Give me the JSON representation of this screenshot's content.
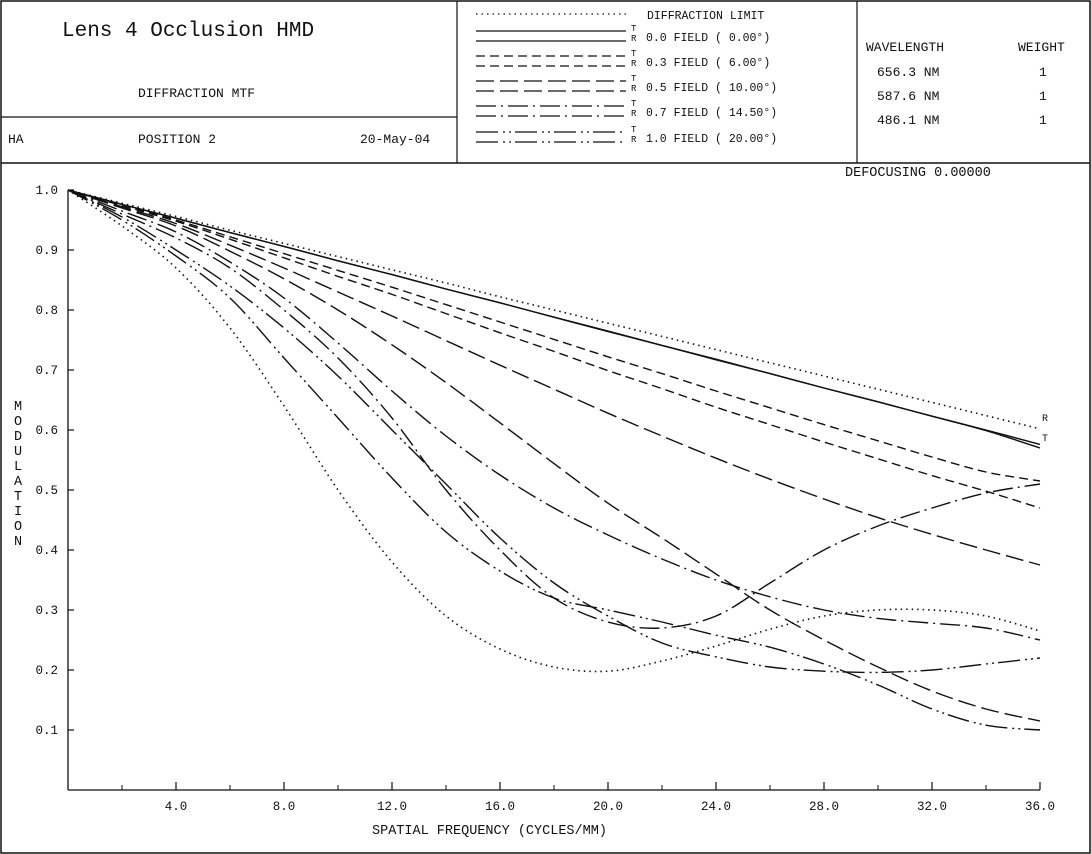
{
  "header": {
    "title": "Lens 4 Occlusion HMD",
    "subtitle": "DIFFRACTION MTF",
    "designer": "HA",
    "position": "POSITION 2",
    "date": "20-May-04"
  },
  "legend": {
    "items": [
      {
        "label": "DIFFRACTION LIMIT",
        "style": "diffraction"
      },
      {
        "label": "0.0 FIELD ( 0.00°)",
        "style": "field0"
      },
      {
        "label": "0.3 FIELD ( 6.00°)",
        "style": "field1"
      },
      {
        "label": "0.5 FIELD ( 10.00°)",
        "style": "field2"
      },
      {
        "label": "0.7 FIELD ( 14.50°)",
        "style": "field3"
      },
      {
        "label": "1.0 FIELD ( 20.00°)",
        "style": "field4"
      }
    ],
    "tr_t": "T",
    "tr_r": "R"
  },
  "wavelengths": {
    "header_wavelength": "WAVELENGTH",
    "header_weight": "WEIGHT",
    "rows": [
      {
        "wavelength": "656.3 NM",
        "weight": "1"
      },
      {
        "wavelength": "587.6 NM",
        "weight": "1"
      },
      {
        "wavelength": "486.1 NM",
        "weight": "1"
      }
    ]
  },
  "defocusing": "DEFOCUSING 0.00000",
  "chart_data": {
    "type": "line",
    "xlabel": "SPATIAL FREQUENCY (CYCLES/MM)",
    "ylabel": "MODULATION",
    "xlim": [
      0,
      36
    ],
    "ylim": [
      0,
      1.0
    ],
    "x_ticks": [
      "4.0",
      "8.0",
      "12.0",
      "16.0",
      "20.0",
      "24.0",
      "28.0",
      "32.0",
      "36.0"
    ],
    "y_ticks": [
      "0.1",
      "0.2",
      "0.3",
      "0.4",
      "0.5",
      "0.6",
      "0.7",
      "0.8",
      "0.9",
      "1.0"
    ],
    "end_labels": [
      "R",
      "T"
    ],
    "x": [
      0,
      2,
      4,
      6,
      8,
      10,
      12,
      14,
      16,
      18,
      20,
      22,
      24,
      26,
      28,
      30,
      32,
      34,
      36
    ],
    "series": [
      {
        "name": "DIFFRACTION LIMIT",
        "style": "diffraction",
        "values": [
          1.0,
          0.978,
          0.956,
          0.933,
          0.911,
          0.889,
          0.867,
          0.845,
          0.822,
          0.8,
          0.778,
          0.756,
          0.734,
          0.712,
          0.69,
          0.668,
          0.646,
          0.624,
          0.602
        ]
      },
      {
        "name": "0.0 FIELD T",
        "style": "field0",
        "values": [
          1.0,
          0.976,
          0.953,
          0.929,
          0.906,
          0.882,
          0.859,
          0.835,
          0.812,
          0.788,
          0.765,
          0.741,
          0.718,
          0.694,
          0.67,
          0.647,
          0.623,
          0.6,
          0.576
        ]
      },
      {
        "name": "0.0 FIELD R",
        "style": "field0",
        "values": [
          1.0,
          0.976,
          0.953,
          0.929,
          0.906,
          0.882,
          0.859,
          0.835,
          0.812,
          0.788,
          0.764,
          0.741,
          0.717,
          0.694,
          0.67,
          0.647,
          0.623,
          0.599,
          0.57
        ]
      },
      {
        "name": "0.3 FIELD T",
        "style": "field1",
        "values": [
          1.0,
          0.975,
          0.95,
          0.922,
          0.894,
          0.866,
          0.838,
          0.809,
          0.78,
          0.751,
          0.722,
          0.694,
          0.665,
          0.637,
          0.609,
          0.582,
          0.555,
          0.53,
          0.515
        ]
      },
      {
        "name": "0.3 FIELD R",
        "style": "field1",
        "values": [
          1.0,
          0.974,
          0.948,
          0.918,
          0.887,
          0.856,
          0.826,
          0.794,
          0.762,
          0.731,
          0.699,
          0.669,
          0.638,
          0.609,
          0.58,
          0.552,
          0.524,
          0.498,
          0.47
        ]
      },
      {
        "name": "0.5 FIELD T",
        "style": "field2",
        "values": [
          1.0,
          0.972,
          0.944,
          0.908,
          0.87,
          0.83,
          0.79,
          0.749,
          0.708,
          0.668,
          0.628,
          0.59,
          0.553,
          0.518,
          0.485,
          0.454,
          0.426,
          0.4,
          0.375
        ]
      },
      {
        "name": "0.5 FIELD R",
        "style": "field2",
        "values": [
          1.0,
          0.97,
          0.94,
          0.898,
          0.852,
          0.8,
          0.742,
          0.679,
          0.612,
          0.544,
          0.478,
          0.42,
          0.36,
          0.3,
          0.25,
          0.205,
          0.165,
          0.135,
          0.115
        ]
      },
      {
        "name": "0.7 FIELD T",
        "style": "field3",
        "values": [
          1.0,
          0.965,
          0.93,
          0.88,
          0.82,
          0.745,
          0.665,
          0.59,
          0.525,
          0.47,
          0.425,
          0.385,
          0.35,
          0.322,
          0.3,
          0.286,
          0.278,
          0.27,
          0.25
        ]
      },
      {
        "name": "0.7 FIELD R",
        "style": "field3",
        "values": [
          1.0,
          0.96,
          0.92,
          0.87,
          0.8,
          0.72,
          0.62,
          0.5,
          0.4,
          0.32,
          0.28,
          0.27,
          0.29,
          0.345,
          0.4,
          0.44,
          0.47,
          0.495,
          0.51
        ]
      },
      {
        "name": "1.0 FIELD T",
        "style": "field4",
        "values": [
          1.0,
          0.955,
          0.9,
          0.84,
          0.77,
          0.69,
          0.6,
          0.51,
          0.42,
          0.345,
          0.29,
          0.245,
          0.222,
          0.205,
          0.198,
          0.196,
          0.2,
          0.21,
          0.22
        ]
      },
      {
        "name": "1.0 FIELD R",
        "style": "field4",
        "values": [
          1.0,
          0.95,
          0.89,
          0.82,
          0.72,
          0.62,
          0.52,
          0.43,
          0.365,
          0.32,
          0.3,
          0.28,
          0.258,
          0.238,
          0.21,
          0.175,
          0.135,
          0.108,
          0.1
        ]
      },
      {
        "name": "DIFFRACTION LIMIT R",
        "style": "diffraction",
        "values": [
          1.0,
          0.94,
          0.87,
          0.77,
          0.64,
          0.5,
          0.38,
          0.29,
          0.235,
          0.205,
          0.198,
          0.215,
          0.24,
          0.268,
          0.29,
          0.3,
          0.3,
          0.29,
          0.265
        ]
      }
    ]
  }
}
